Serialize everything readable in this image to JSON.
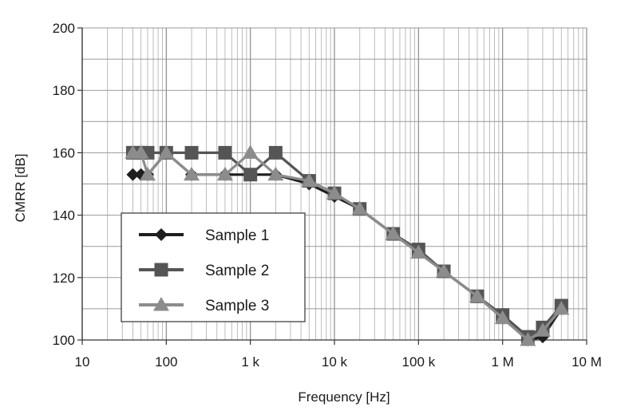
{
  "chart_data": {
    "type": "line",
    "xscale": "log",
    "xlim": [
      10,
      10000000
    ],
    "ylim": [
      100,
      200
    ],
    "xlabel": "Frequency [Hz]",
    "ylabel": "CMRR [dB]",
    "x_tick_values": [
      10,
      100,
      1000,
      10000,
      100000,
      1000000,
      10000000
    ],
    "x_tick_labels": [
      "10",
      "100",
      "1 k",
      "10 k",
      "100 k",
      "1 M",
      "10 M"
    ],
    "y_tick_values": [
      100,
      120,
      140,
      160,
      180,
      200
    ],
    "y_tick_labels": [
      "100",
      "120",
      "140",
      "160",
      "180",
      "200"
    ],
    "grid": true,
    "legend_position": "lower-left",
    "series": [
      {
        "name": "Sample 1",
        "color": "#1e1e1e",
        "marker": "diamond",
        "x": [
          40,
          50,
          60,
          100,
          200,
          500,
          1000,
          2000,
          5000,
          10000,
          20000,
          50000,
          100000,
          200000,
          500000,
          1000000,
          2000000,
          3000000,
          5000000
        ],
        "y": [
          153,
          153,
          153,
          160,
          153,
          153,
          153,
          153,
          150,
          146,
          142,
          134,
          128,
          122,
          114,
          107,
          100,
          101,
          110
        ]
      },
      {
        "name": "Sample 2",
        "color": "#555555",
        "marker": "square",
        "x": [
          40,
          50,
          60,
          100,
          200,
          500,
          1000,
          2000,
          5000,
          10000,
          20000,
          50000,
          100000,
          200000,
          500000,
          1000000,
          2000000,
          3000000,
          5000000
        ],
        "y": [
          160,
          160,
          160,
          160,
          160,
          160,
          153,
          160,
          151,
          147,
          142,
          134,
          129,
          122,
          114,
          108,
          101,
          104,
          111
        ]
      },
      {
        "name": "Sample 3",
        "color": "#8c8c8c",
        "marker": "triangle",
        "x": [
          40,
          50,
          60,
          100,
          200,
          500,
          1000,
          2000,
          5000,
          10000,
          20000,
          50000,
          100000,
          200000,
          500000,
          1000000,
          2000000,
          3000000,
          5000000
        ],
        "y": [
          160,
          160,
          153,
          160,
          153,
          153,
          160,
          153,
          151,
          147,
          142,
          134,
          128,
          122,
          114,
          107,
          100,
          103,
          110
        ]
      }
    ]
  }
}
